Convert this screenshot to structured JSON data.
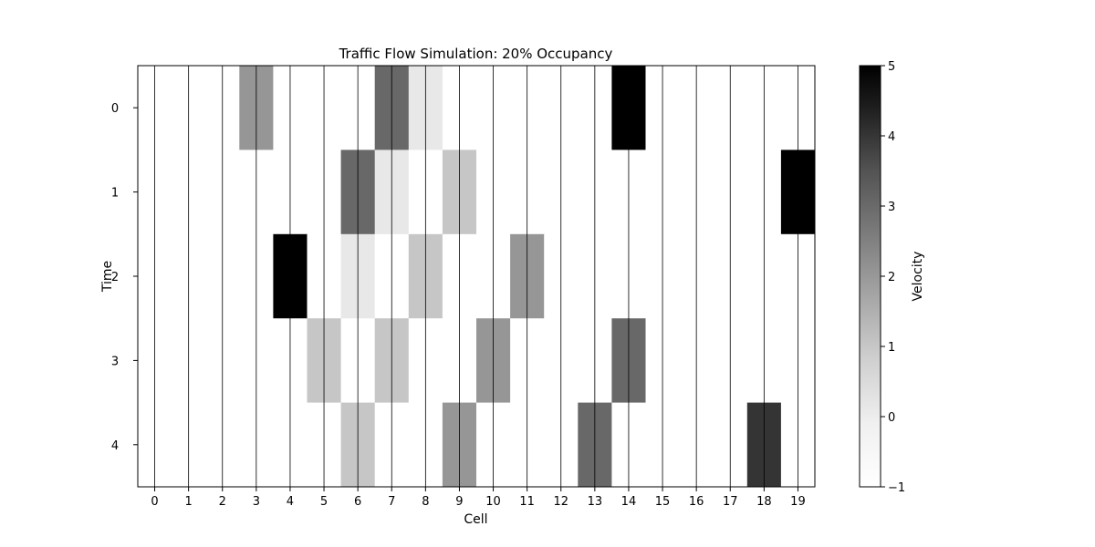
{
  "chart_data": {
    "type": "heatmap",
    "title": "Traffic Flow Simulation: 20% Occupancy",
    "xlabel": "Cell",
    "ylabel": "Time",
    "x": [
      0,
      1,
      2,
      3,
      4,
      5,
      6,
      7,
      8,
      9,
      10,
      11,
      12,
      13,
      14,
      15,
      16,
      17,
      18,
      19
    ],
    "y": [
      0,
      1,
      2,
      3,
      4
    ],
    "values": [
      [
        -1,
        -1,
        -1,
        2,
        -1,
        -1,
        -1,
        3,
        0,
        -1,
        -1,
        -1,
        -1,
        -1,
        5,
        -1,
        -1,
        -1,
        -1,
        -1
      ],
      [
        -1,
        -1,
        -1,
        -1,
        -1,
        -1,
        3,
        0,
        -1,
        1,
        -1,
        -1,
        -1,
        -1,
        -1,
        -1,
        -1,
        -1,
        -1,
        5
      ],
      [
        -1,
        -1,
        -1,
        -1,
        5,
        -1,
        0,
        -1,
        1,
        -1,
        -1,
        2,
        -1,
        -1,
        -1,
        -1,
        -1,
        -1,
        -1,
        -1
      ],
      [
        -1,
        -1,
        -1,
        -1,
        -1,
        1,
        -1,
        1,
        -1,
        -1,
        2,
        -1,
        -1,
        -1,
        3,
        -1,
        -1,
        -1,
        -1,
        -1
      ],
      [
        -1,
        -1,
        -1,
        -1,
        -1,
        -1,
        1,
        -1,
        -1,
        2,
        -1,
        -1,
        -1,
        3,
        -1,
        -1,
        -1,
        -1,
        4,
        -1
      ]
    ],
    "colorbar": {
      "label": "Velocity",
      "range": [
        -1,
        5
      ],
      "ticks": [
        -1,
        0,
        1,
        2,
        3,
        4,
        5
      ],
      "colormap": "Greys"
    },
    "vertical_gridlines": true,
    "colors": {
      "low": "#ffffff",
      "high": "#000000",
      "grid": "#000000"
    }
  }
}
